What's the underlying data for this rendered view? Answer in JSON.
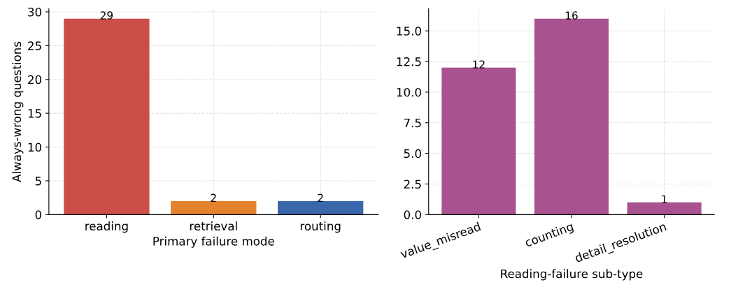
{
  "chart_data": [
    {
      "type": "bar",
      "xlabel": "Primary failure mode",
      "ylabel": "Always-wrong questions",
      "categories": [
        "reading",
        "retrieval",
        "routing"
      ],
      "values": [
        29,
        2,
        2
      ],
      "colors": [
        "#c8453f",
        "#e07b20",
        "#2f5fa8"
      ],
      "ylim": [
        0,
        30.45
      ],
      "yticks": [
        0,
        5,
        10,
        15,
        20,
        25,
        30
      ],
      "grid": true,
      "data_labels": true
    },
    {
      "type": "bar",
      "xlabel": "Reading-failure sub-type",
      "categories": [
        "value_misread",
        "counting",
        "detail_resolution"
      ],
      "values": [
        12,
        16,
        1
      ],
      "colors": [
        "#a34a8a",
        "#a34a8a",
        "#a34a8a"
      ],
      "ylim": [
        0,
        16.8
      ],
      "yticks": [
        {
          "value": 0,
          "label": "0.0"
        },
        2.5,
        {
          "value": 5,
          "label": "5.0"
        },
        7.5,
        {
          "value": 10,
          "label": "10.0"
        },
        12.5,
        {
          "value": 15,
          "label": "15.0"
        }
      ],
      "grid": true,
      "data_labels": true
    }
  ]
}
